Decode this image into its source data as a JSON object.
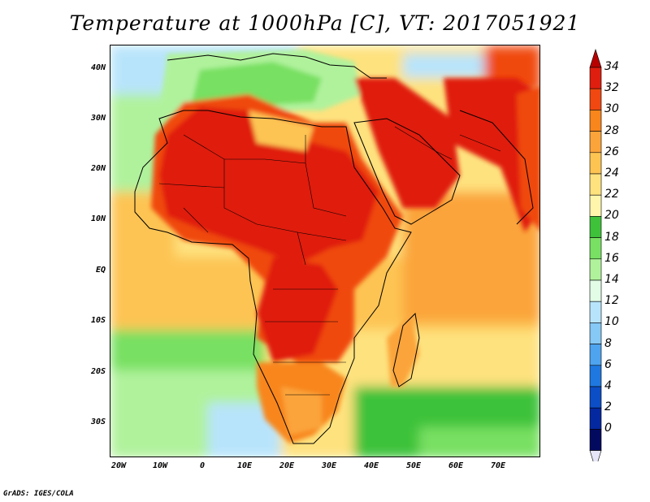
{
  "title": "Temperature at 1000hPa [C], VT: 2017051921",
  "lat_labels": [
    "40N",
    "30N",
    "20N",
    "10N",
    "EQ",
    "10S",
    "20S",
    "30S"
  ],
  "lon_labels": [
    "20W",
    "10W",
    "0",
    "10E",
    "20E",
    "30E",
    "40E",
    "50E",
    "60E",
    "70E"
  ],
  "colorbar": {
    "labels": [
      "34",
      "32",
      "30",
      "28",
      "26",
      "24",
      "22",
      "20",
      "18",
      "16",
      "14",
      "12",
      "10",
      "8",
      "6",
      "4",
      "2",
      "0"
    ],
    "colors_top_to_bottom": [
      "#e01e0f",
      "#f04810",
      "#f8861c",
      "#fba43a",
      "#fdc452",
      "#fee27e",
      "#fff6ac",
      "#3ec23a",
      "#78e062",
      "#b0f29c",
      "#e2fce6",
      "#b8e4fb",
      "#86c8f6",
      "#4ea4ef",
      "#1e78e0",
      "#0c4ec6",
      "#0428a0",
      "#020a60"
    ],
    "over_color": "#b80000",
    "under_color": "#e6e6f8"
  },
  "footer": "GrADS: IGES/COLA"
}
